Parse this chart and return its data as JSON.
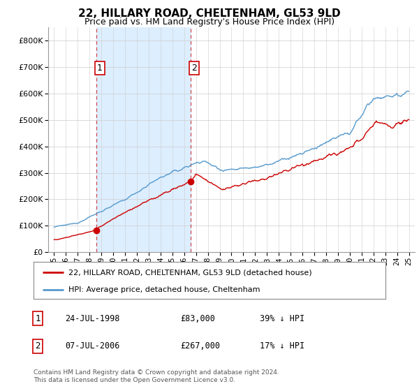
{
  "title": "22, HILLARY ROAD, CHELTENHAM, GL53 9LD",
  "subtitle": "Price paid vs. HM Land Registry's House Price Index (HPI)",
  "legend_label_red": "22, HILLARY ROAD, CHELTENHAM, GL53 9LD (detached house)",
  "legend_label_blue": "HPI: Average price, detached house, Cheltenham",
  "sale1_date": "24-JUL-1998",
  "sale1_price": "£83,000",
  "sale1_note": "39% ↓ HPI",
  "sale2_date": "07-JUL-2006",
  "sale2_price": "£267,000",
  "sale2_note": "17% ↓ HPI",
  "footer": "Contains HM Land Registry data © Crown copyright and database right 2024.\nThis data is licensed under the Open Government Licence v3.0.",
  "ylim": [
    0,
    850000
  ],
  "color_red": "#cc0000",
  "color_blue": "#5599cc",
  "color_shade": "#ddeeff",
  "background_color": "#ffffff",
  "sale1_year": 1998.56,
  "sale1_value": 83000,
  "sale2_year": 2006.52,
  "sale2_value": 267000,
  "title_fontsize": 11,
  "subtitle_fontsize": 9
}
